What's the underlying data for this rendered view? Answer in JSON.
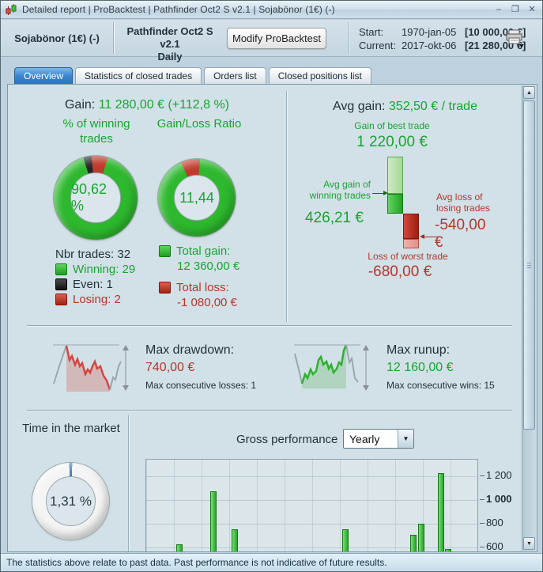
{
  "colors": {
    "gain_green": "#1aa333",
    "loss_red": "#b5362c",
    "bar_green": "#2db82d",
    "even_black": "#262626",
    "accent_blue": "#3c87d0"
  },
  "icons": {
    "minimize": "–",
    "maximize": "❐",
    "close": "✕",
    "scroll_up": "▲",
    "scroll_down": "▼",
    "dropdown_arrow": "▼"
  },
  "window": {
    "title": "Detailed report | ProBacktest | Pathfinder Oct2 S v2.1 | Sojabönor (1€) (-)"
  },
  "header": {
    "instrument": "Sojabönor (1€) (-)",
    "system": "Pathfinder Oct2 S v2.1",
    "timeframe": "Daily",
    "modify_button": "Modify ProBacktest",
    "start_label": "Start:",
    "start_date": "1970-jan-05",
    "start_value": "[10 000,00 €]",
    "current_label": "Current:",
    "current_date": "2017-okt-06",
    "current_value": "[21 280,00 €]"
  },
  "tabs": [
    {
      "label": "Overview",
      "active": true
    },
    {
      "label": "Statistics of closed trades",
      "active": false
    },
    {
      "label": "Orders list",
      "active": false
    },
    {
      "label": "Closed positions list",
      "active": false
    }
  ],
  "overview": {
    "gain_label": "Gain:",
    "gain_value": "11 280,00 € (+112,8 %)",
    "winning_title": "% of winning trades",
    "winning_value": "90,62 %",
    "ratio_title": "Gain/Loss Ratio",
    "ratio_value": "11,44",
    "nbr_trades": "Nbr trades: 32",
    "legend_winning": "Winning: 29",
    "legend_even": "Even: 1",
    "legend_losing": "Losing: 2",
    "total_gain_label": "Total gain:",
    "total_gain_value": "12 360,00 €",
    "total_loss_label": "Total loss:",
    "total_loss_value": "-1 080,00 €",
    "avg_gain_label": "Avg gain:",
    "avg_gain_value": "352,50 € / trade",
    "best_trade_label": "Gain of best trade",
    "best_trade_value": "1 220,00 €",
    "avg_win_label": "Avg gain of winning trades",
    "avg_win_value": "426,21 €",
    "avg_loss_label": "Avg loss of losing trades",
    "avg_loss_value": "-540,00 €",
    "worst_trade_label": "Loss of worst trade",
    "worst_trade_value": "-680,00 €",
    "drawdown_label": "Max drawdown:",
    "drawdown_value": "740,00 €",
    "drawdown_consecutive": "Max consecutive losses: 1",
    "runup_label": "Max runup:",
    "runup_value": "12 160,00 €",
    "runup_consecutive": "Max consecutive wins: 15",
    "time_in_market_title": "Time in the market",
    "time_in_market_value": "1,31 %",
    "gross_performance_label": "Gross performance",
    "gross_performance_period": "Yearly"
  },
  "chart_data": [
    {
      "type": "pie",
      "title": "% of winning trades",
      "center_text": "90,62 %",
      "start_deg": -17,
      "slices": [
        {
          "label": "Even",
          "value": 1,
          "color": "#262626"
        },
        {
          "label": "Losing",
          "value": 2,
          "color": "#c0392b"
        },
        {
          "label": "Winning",
          "value": 29,
          "color": "#2db82d"
        }
      ]
    },
    {
      "type": "pie",
      "title": "Gain/Loss Ratio",
      "center_text": "11,44",
      "start_deg": -24,
      "slices": [
        {
          "label": "Total loss",
          "value": 1080,
          "color": "#c0392b"
        },
        {
          "label": "Total gain",
          "value": 12360,
          "color": "#2db82d"
        }
      ]
    },
    {
      "type": "pie",
      "title": "Time in the market",
      "center_text": "1,31 %",
      "start_deg": -2.4,
      "slices": [
        {
          "label": "In the market",
          "value": 1.31,
          "color": "#4a7fc1"
        },
        {
          "label": "Out of the market",
          "value": 98.69,
          "color": "#f3f4f3"
        }
      ]
    },
    {
      "type": "bar",
      "title": "Gross performance",
      "period": "Yearly",
      "legend_position": "none",
      "grid": true,
      "x_axis_labels_visible": false,
      "ylim_visible": [
        560,
        1280
      ],
      "yticks": [
        {
          "value": 1200,
          "label": "1 200",
          "bold": false
        },
        {
          "value": 1000,
          "label": "1 000",
          "bold": true
        },
        {
          "value": 800,
          "label": "800",
          "bold": false
        },
        {
          "value": 600,
          "label": "600",
          "bold": false
        }
      ],
      "bar_color": "#2db82d",
      "bars": [
        {
          "x_pct": 9.0,
          "value": 625
        },
        {
          "x_pct": 19.3,
          "value": 1075
        },
        {
          "x_pct": 25.7,
          "value": 755
        },
        {
          "x_pct": 59.3,
          "value": 755
        },
        {
          "x_pct": 79.8,
          "value": 705
        },
        {
          "x_pct": 82.1,
          "value": 800
        },
        {
          "x_pct": 88.1,
          "value": 1225
        },
        {
          "x_pct": 90.2,
          "value": 590
        }
      ]
    }
  ],
  "status_bar": "The statistics above relate to past data. Past performance is not indicative of future results."
}
